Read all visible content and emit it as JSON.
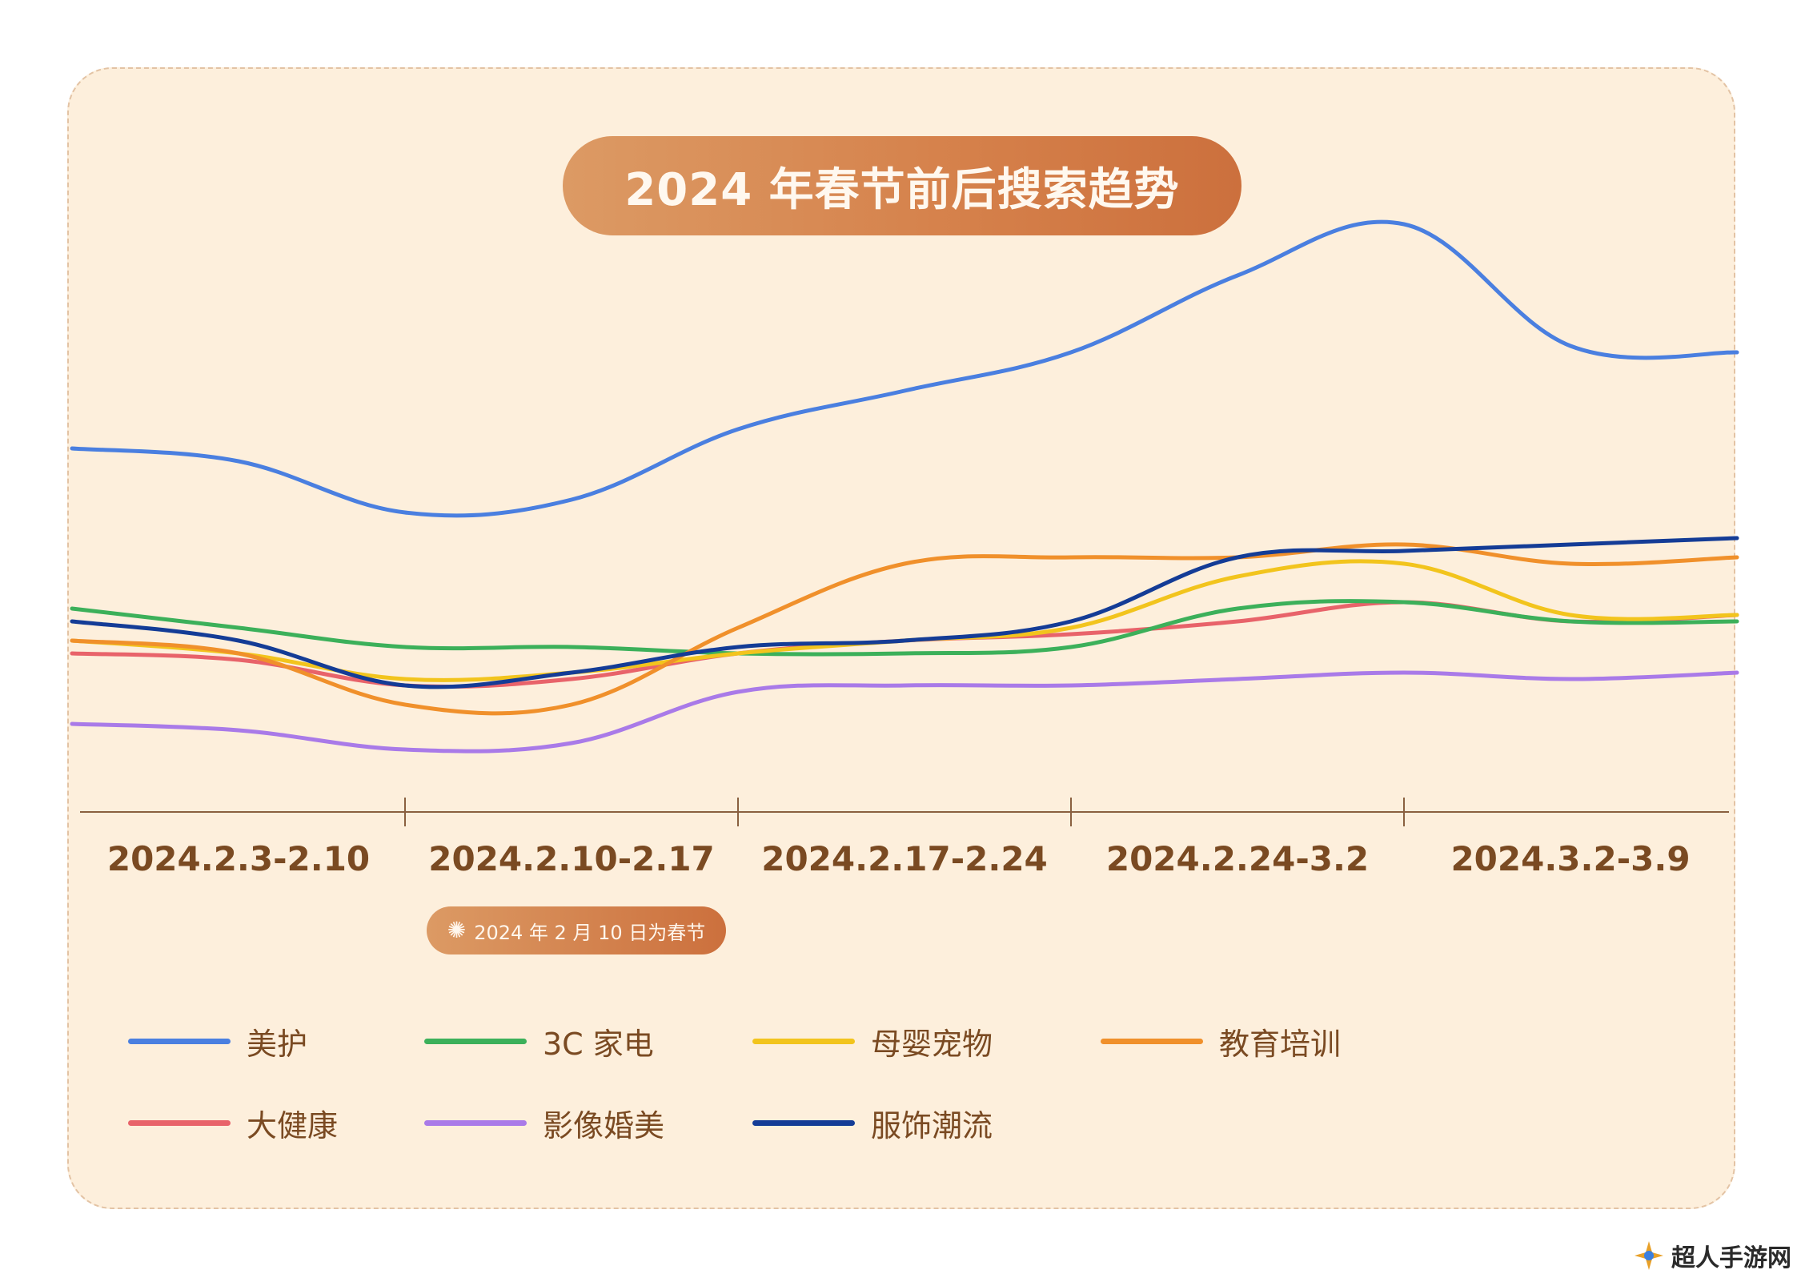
{
  "title": "2024 年春节前后搜索趋势",
  "note": "2024 年 2 月 10 日为春节",
  "watermark": "超人手游网",
  "chart_data": {
    "type": "line",
    "title": "2024 年春节前后搜索趋势",
    "categories": [
      "2024.2.3-2.10",
      "2024.2.10-2.17",
      "2024.2.17-2.24",
      "2024.2.24-3.2",
      "2024.3.2-3.9"
    ],
    "x": [
      0,
      0.5,
      1,
      1.5,
      2,
      2.5,
      3,
      3.5,
      4,
      4.5,
      5
    ],
    "ylim": [
      0,
      100
    ],
    "grid": false,
    "legend_position": "bottom",
    "series": [
      {
        "name": "美护",
        "color": "#4a7fe0",
        "values": [
          55,
          53,
          45,
          47,
          58,
          64,
          70,
          82,
          90,
          71,
          70
        ]
      },
      {
        "name": "3C 家电",
        "color": "#3cb05a",
        "values": [
          30,
          27,
          24,
          24,
          23,
          23,
          24,
          30,
          31,
          28,
          28
        ]
      },
      {
        "name": "母婴宠物",
        "color": "#f2c41d",
        "values": [
          25,
          23,
          19,
          20,
          23,
          25,
          27,
          35,
          37,
          29,
          29
        ]
      },
      {
        "name": "教育培训",
        "color": "#f0902b",
        "values": [
          25,
          23,
          15,
          15,
          27,
          37,
          38,
          38,
          40,
          37,
          38
        ]
      },
      {
        "name": "大健康",
        "color": "#e8636a",
        "values": [
          23,
          22,
          18,
          19,
          23,
          25,
          26,
          28,
          31,
          28,
          29
        ]
      },
      {
        "name": "影像婚美",
        "color": "#a97ae8",
        "values": [
          12,
          11,
          8,
          9,
          17,
          18,
          18,
          19,
          20,
          19,
          20
        ]
      },
      {
        "name": "服饰潮流",
        "color": "#143c96",
        "values": [
          28,
          25,
          18,
          20,
          24,
          25,
          28,
          38,
          39,
          40,
          41
        ]
      }
    ]
  }
}
